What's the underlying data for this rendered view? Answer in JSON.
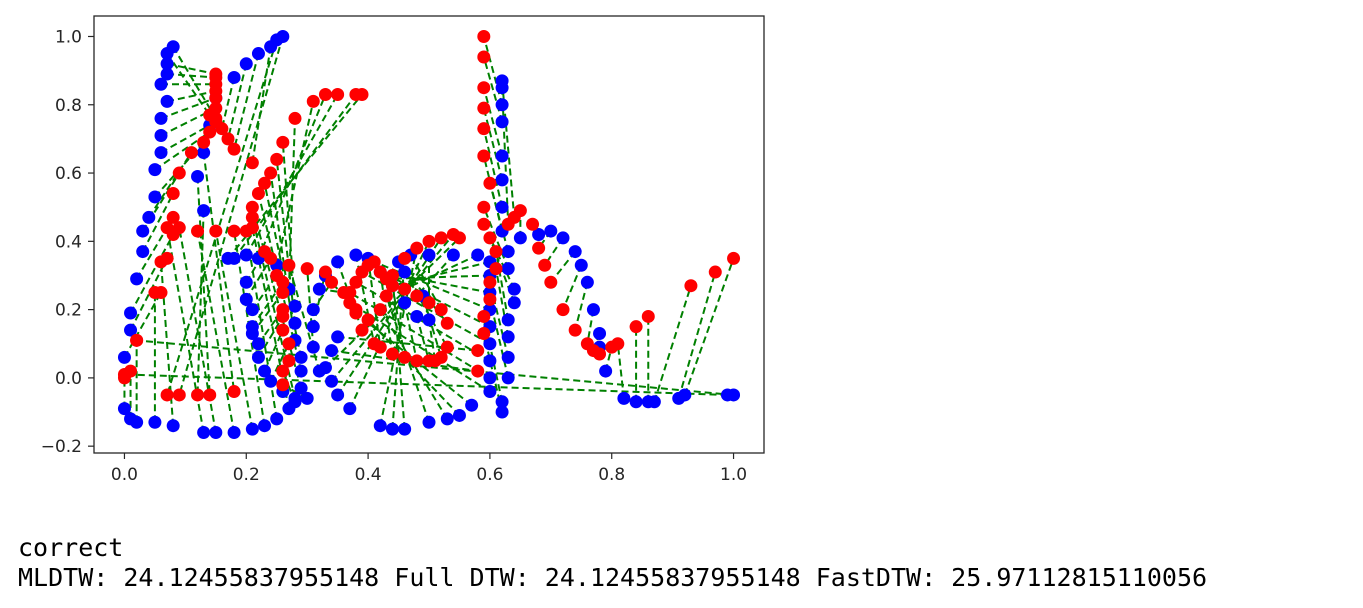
{
  "output": {
    "line1": "correct",
    "line2": "MLDTW: 24.12455837955148 Full DTW: 24.12455837955148 FastDTW: 25.97112815110056"
  },
  "chart_data": {
    "type": "scatter",
    "title": "",
    "xlabel": "",
    "ylabel": "",
    "xlim": [
      -0.05,
      1.05
    ],
    "ylim": [
      -0.22,
      1.06
    ],
    "xticks": [
      0.0,
      0.2,
      0.4,
      0.6,
      0.8,
      1.0
    ],
    "xtick_labels": [
      "0.0",
      "0.2",
      "0.4",
      "0.6",
      "0.8",
      "1.0"
    ],
    "yticks": [
      -0.2,
      0.0,
      0.2,
      0.4,
      0.6,
      0.8,
      1.0
    ],
    "ytick_labels": [
      "−0.2",
      "0.0",
      "0.2",
      "0.4",
      "0.6",
      "0.8",
      "1.0"
    ],
    "grid": false,
    "colors": {
      "series_a": "#0000ff",
      "series_b": "#ff0000",
      "alignment": "#008000"
    },
    "series_a_points": [
      [
        0.0,
        -0.09
      ],
      [
        0.01,
        -0.12
      ],
      [
        0.02,
        -0.13
      ],
      [
        0.05,
        -0.13
      ],
      [
        0.08,
        -0.14
      ],
      [
        0.13,
        -0.16
      ],
      [
        0.15,
        -0.16
      ],
      [
        0.18,
        -0.16
      ],
      [
        0.21,
        -0.15
      ],
      [
        0.23,
        -0.14
      ],
      [
        0.25,
        -0.12
      ],
      [
        0.27,
        -0.09
      ],
      [
        0.28,
        -0.06
      ],
      [
        0.29,
        -0.03
      ],
      [
        0.29,
        0.02
      ],
      [
        0.29,
        0.06
      ],
      [
        0.28,
        0.11
      ],
      [
        0.28,
        0.16
      ],
      [
        0.28,
        0.21
      ],
      [
        0.27,
        0.26
      ],
      [
        0.25,
        0.33
      ],
      [
        0.22,
        0.35
      ],
      [
        0.2,
        0.36
      ],
      [
        0.18,
        0.35
      ],
      [
        0.17,
        0.35
      ],
      [
        0.2,
        0.28
      ],
      [
        0.2,
        0.23
      ],
      [
        0.21,
        0.2
      ],
      [
        0.21,
        0.15
      ],
      [
        0.21,
        0.13
      ],
      [
        0.22,
        0.1
      ],
      [
        0.22,
        0.06
      ],
      [
        0.23,
        0.02
      ],
      [
        0.24,
        -0.01
      ],
      [
        0.26,
        -0.04
      ],
      [
        0.28,
        -0.07
      ],
      [
        0.3,
        -0.06
      ],
      [
        0.32,
        0.02
      ],
      [
        0.31,
        0.09
      ],
      [
        0.31,
        0.15
      ],
      [
        0.31,
        0.2
      ],
      [
        0.32,
        0.26
      ],
      [
        0.33,
        0.3
      ],
      [
        0.35,
        0.34
      ],
      [
        0.38,
        0.36
      ],
      [
        0.4,
        0.35
      ],
      [
        0.42,
        0.31
      ],
      [
        0.44,
        0.27
      ],
      [
        0.46,
        0.22
      ],
      [
        0.48,
        0.18
      ],
      [
        0.5,
        0.17
      ],
      [
        0.49,
        0.24
      ],
      [
        0.46,
        0.31
      ],
      [
        0.45,
        0.34
      ],
      [
        0.47,
        0.36
      ],
      [
        0.5,
        0.36
      ],
      [
        0.54,
        0.36
      ],
      [
        0.58,
        0.36
      ],
      [
        0.6,
        0.34
      ],
      [
        0.6,
        0.3
      ],
      [
        0.6,
        0.25
      ],
      [
        0.6,
        0.2
      ],
      [
        0.6,
        0.15
      ],
      [
        0.6,
        0.1
      ],
      [
        0.6,
        0.05
      ],
      [
        0.6,
        0.0
      ],
      [
        0.6,
        -0.04
      ],
      [
        0.57,
        -0.08
      ],
      [
        0.55,
        -0.11
      ],
      [
        0.53,
        -0.12
      ],
      [
        0.5,
        -0.13
      ],
      [
        0.46,
        -0.15
      ],
      [
        0.44,
        -0.15
      ],
      [
        0.42,
        -0.14
      ],
      [
        0.37,
        -0.09
      ],
      [
        0.35,
        -0.05
      ],
      [
        0.34,
        -0.01
      ],
      [
        0.33,
        0.03
      ],
      [
        0.34,
        0.08
      ],
      [
        0.35,
        0.12
      ],
      [
        0.62,
        -0.1
      ],
      [
        0.62,
        -0.07
      ],
      [
        0.63,
        0.0
      ],
      [
        0.63,
        0.06
      ],
      [
        0.63,
        0.12
      ],
      [
        0.63,
        0.17
      ],
      [
        0.64,
        0.22
      ],
      [
        0.64,
        0.26
      ],
      [
        0.63,
        0.32
      ],
      [
        0.63,
        0.37
      ],
      [
        0.62,
        0.43
      ],
      [
        0.62,
        0.5
      ],
      [
        0.62,
        0.58
      ],
      [
        0.62,
        0.65
      ],
      [
        0.62,
        0.75
      ],
      [
        0.62,
        0.8
      ],
      [
        0.62,
        0.85
      ],
      [
        0.62,
        0.87
      ],
      [
        0.65,
        0.41
      ],
      [
        0.68,
        0.42
      ],
      [
        0.7,
        0.43
      ],
      [
        0.72,
        0.41
      ],
      [
        0.74,
        0.37
      ],
      [
        0.75,
        0.33
      ],
      [
        0.76,
        0.28
      ],
      [
        0.77,
        0.2
      ],
      [
        0.78,
        0.13
      ],
      [
        0.78,
        0.09
      ],
      [
        0.79,
        0.02
      ],
      [
        0.82,
        -0.06
      ],
      [
        0.84,
        -0.07
      ],
      [
        0.86,
        -0.07
      ],
      [
        0.87,
        -0.07
      ],
      [
        0.91,
        -0.06
      ],
      [
        0.92,
        -0.05
      ],
      [
        0.99,
        -0.05
      ],
      [
        1.0,
        -0.05
      ],
      [
        0.0,
        0.06
      ],
      [
        0.01,
        0.14
      ],
      [
        0.01,
        0.19
      ],
      [
        0.02,
        0.29
      ],
      [
        0.03,
        0.37
      ],
      [
        0.03,
        0.43
      ],
      [
        0.04,
        0.47
      ],
      [
        0.05,
        0.53
      ],
      [
        0.05,
        0.61
      ],
      [
        0.06,
        0.66
      ],
      [
        0.06,
        0.71
      ],
      [
        0.06,
        0.76
      ],
      [
        0.07,
        0.81
      ],
      [
        0.06,
        0.86
      ],
      [
        0.07,
        0.89
      ],
      [
        0.07,
        0.92
      ],
      [
        0.07,
        0.95
      ],
      [
        0.08,
        0.97
      ],
      [
        0.18,
        0.88
      ],
      [
        0.2,
        0.92
      ],
      [
        0.22,
        0.95
      ],
      [
        0.24,
        0.97
      ],
      [
        0.25,
        0.99
      ],
      [
        0.26,
        1.0
      ],
      [
        0.13,
        0.49
      ],
      [
        0.12,
        0.59
      ],
      [
        0.13,
        0.66
      ],
      [
        0.14,
        0.74
      ],
      [
        0.15,
        0.82
      ]
    ],
    "series_b_points": [
      [
        0.0,
        0.0
      ],
      [
        0.01,
        0.02
      ],
      [
        0.02,
        0.11
      ],
      [
        0.05,
        0.25
      ],
      [
        0.06,
        0.34
      ],
      [
        0.07,
        0.44
      ],
      [
        0.09,
        0.44
      ],
      [
        0.12,
        0.43
      ],
      [
        0.15,
        0.43
      ],
      [
        0.18,
        0.43
      ],
      [
        0.2,
        0.43
      ],
      [
        0.21,
        0.44
      ],
      [
        0.21,
        0.47
      ],
      [
        0.21,
        0.5
      ],
      [
        0.22,
        0.54
      ],
      [
        0.23,
        0.57
      ],
      [
        0.24,
        0.6
      ],
      [
        0.25,
        0.64
      ],
      [
        0.26,
        0.69
      ],
      [
        0.28,
        0.76
      ],
      [
        0.31,
        0.81
      ],
      [
        0.33,
        0.83
      ],
      [
        0.35,
        0.83
      ],
      [
        0.38,
        0.83
      ],
      [
        0.39,
        0.83
      ],
      [
        0.23,
        0.37
      ],
      [
        0.24,
        0.35
      ],
      [
        0.25,
        0.3
      ],
      [
        0.26,
        0.28
      ],
      [
        0.26,
        0.25
      ],
      [
        0.26,
        0.2
      ],
      [
        0.26,
        0.18
      ],
      [
        0.26,
        0.14
      ],
      [
        0.27,
        0.1
      ],
      [
        0.27,
        0.05
      ],
      [
        0.26,
        0.02
      ],
      [
        0.26,
        -0.02
      ],
      [
        0.27,
        0.33
      ],
      [
        0.3,
        0.32
      ],
      [
        0.33,
        0.31
      ],
      [
        0.34,
        0.28
      ],
      [
        0.36,
        0.25
      ],
      [
        0.38,
        0.2
      ],
      [
        0.39,
        0.14
      ],
      [
        0.41,
        0.1
      ],
      [
        0.42,
        0.09
      ],
      [
        0.44,
        0.07
      ],
      [
        0.46,
        0.06
      ],
      [
        0.48,
        0.05
      ],
      [
        0.5,
        0.05
      ],
      [
        0.51,
        0.05
      ],
      [
        0.52,
        0.06
      ],
      [
        0.53,
        0.09
      ],
      [
        0.53,
        0.16
      ],
      [
        0.52,
        0.2
      ],
      [
        0.5,
        0.22
      ],
      [
        0.48,
        0.24
      ],
      [
        0.46,
        0.26
      ],
      [
        0.44,
        0.27
      ],
      [
        0.43,
        0.29
      ],
      [
        0.42,
        0.31
      ],
      [
        0.41,
        0.34
      ],
      [
        0.4,
        0.33
      ],
      [
        0.39,
        0.31
      ],
      [
        0.38,
        0.28
      ],
      [
        0.37,
        0.25
      ],
      [
        0.37,
        0.22
      ],
      [
        0.38,
        0.19
      ],
      [
        0.4,
        0.17
      ],
      [
        0.42,
        0.2
      ],
      [
        0.43,
        0.24
      ],
      [
        0.44,
        0.3
      ],
      [
        0.46,
        0.35
      ],
      [
        0.48,
        0.38
      ],
      [
        0.5,
        0.4
      ],
      [
        0.52,
        0.41
      ],
      [
        0.54,
        0.42
      ],
      [
        0.55,
        0.41
      ],
      [
        0.58,
        0.02
      ],
      [
        0.58,
        0.08
      ],
      [
        0.59,
        0.13
      ],
      [
        0.59,
        0.18
      ],
      [
        0.6,
        0.23
      ],
      [
        0.6,
        0.28
      ],
      [
        0.61,
        0.32
      ],
      [
        0.61,
        0.37
      ],
      [
        0.6,
        0.41
      ],
      [
        0.59,
        0.45
      ],
      [
        0.59,
        0.5
      ],
      [
        0.6,
        0.57
      ],
      [
        0.59,
        0.65
      ],
      [
        0.59,
        0.73
      ],
      [
        0.59,
        0.79
      ],
      [
        0.59,
        0.85
      ],
      [
        0.59,
        0.94
      ],
      [
        0.59,
        1.0
      ],
      [
        0.63,
        0.45
      ],
      [
        0.64,
        0.47
      ],
      [
        0.65,
        0.49
      ],
      [
        0.67,
        0.45
      ],
      [
        0.68,
        0.38
      ],
      [
        0.69,
        0.33
      ],
      [
        0.7,
        0.28
      ],
      [
        0.72,
        0.2
      ],
      [
        0.74,
        0.14
      ],
      [
        0.76,
        0.1
      ],
      [
        0.77,
        0.08
      ],
      [
        0.78,
        0.07
      ],
      [
        0.8,
        0.09
      ],
      [
        0.81,
        0.1
      ],
      [
        0.84,
        0.15
      ],
      [
        0.86,
        0.18
      ],
      [
        0.93,
        0.27
      ],
      [
        0.97,
        0.31
      ],
      [
        1.0,
        0.35
      ],
      [
        0.0,
        0.01
      ],
      [
        0.02,
        0.11
      ],
      [
        0.06,
        0.25
      ],
      [
        0.07,
        0.35
      ],
      [
        0.08,
        0.42
      ],
      [
        0.08,
        0.47
      ],
      [
        0.08,
        0.54
      ],
      [
        0.09,
        0.6
      ],
      [
        0.11,
        0.66
      ],
      [
        0.13,
        0.69
      ],
      [
        0.14,
        0.72
      ],
      [
        0.15,
        0.75
      ],
      [
        0.15,
        0.79
      ],
      [
        0.15,
        0.82
      ],
      [
        0.15,
        0.84
      ],
      [
        0.15,
        0.86
      ],
      [
        0.15,
        0.88
      ],
      [
        0.15,
        0.89
      ],
      [
        0.14,
        0.77
      ],
      [
        0.15,
        0.76
      ],
      [
        0.16,
        0.73
      ],
      [
        0.17,
        0.7
      ],
      [
        0.18,
        0.67
      ],
      [
        0.21,
        0.63
      ],
      [
        0.07,
        -0.05
      ],
      [
        0.09,
        -0.05
      ],
      [
        0.12,
        -0.05
      ],
      [
        0.14,
        -0.05
      ],
      [
        0.18,
        -0.04
      ]
    ]
  }
}
